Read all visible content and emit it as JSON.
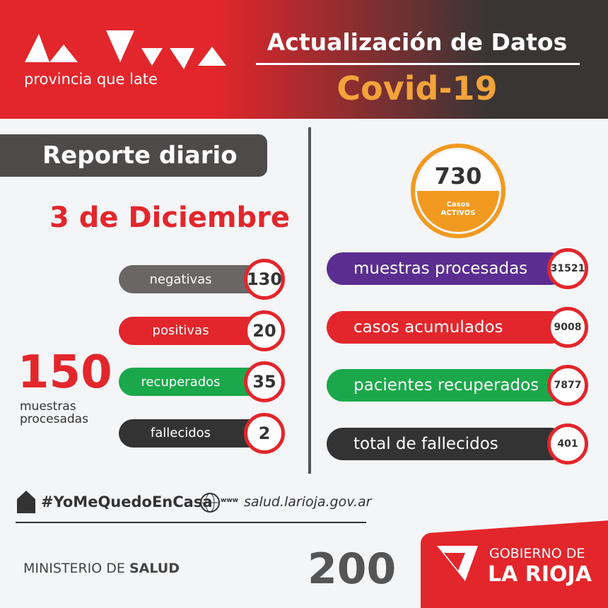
{
  "header": {
    "tagline": "provincia que late",
    "title": "Actualización de Datos",
    "subtitle": "Covid-19"
  },
  "daily": {
    "title": "Reporte diario",
    "date": "3 de Diciembre",
    "samples": {
      "value": 150,
      "label": "muestras procesadas"
    },
    "items": [
      {
        "label": "negativas",
        "value": 130
      },
      {
        "label": "positivas",
        "value": 20
      },
      {
        "label": "recuperados",
        "value": 35
      },
      {
        "label": "fallecidos",
        "value": 2
      }
    ]
  },
  "active": {
    "value": 730,
    "label_1": "Casos",
    "label_2": "ACTIVOS"
  },
  "totals": [
    {
      "label": "muestras procesadas",
      "value": 31521
    },
    {
      "label": "casos acumulados",
      "value": 9008
    },
    {
      "label": "pacientes recuperados",
      "value": 7877
    },
    {
      "label": "total de fallecidos",
      "value": 401
    }
  ],
  "footer": {
    "hashtag": "#YoMeQuedoEnCasa",
    "www": "www",
    "website": "salud.larioja.gov.ar",
    "ministry": "MINISTERIO DE",
    "ministry_bold": "SALUD",
    "anniversary": "200",
    "gov_1": "GOBIERNO DE",
    "gov_2": "LA RIOJA"
  }
}
